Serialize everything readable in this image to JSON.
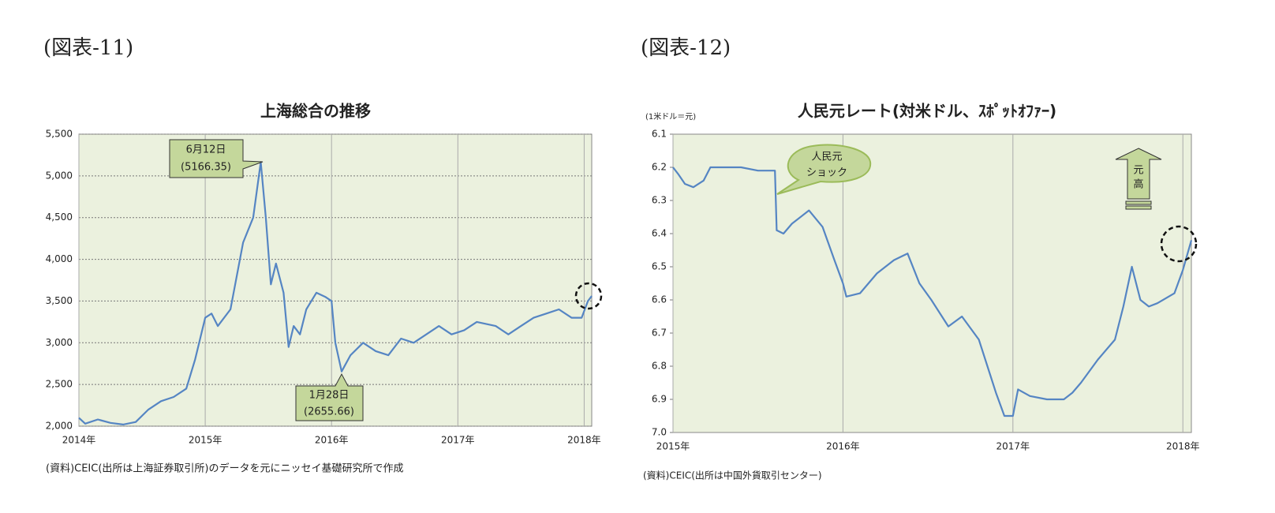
{
  "chart_data": [
    {
      "type": "line",
      "figure_label": "(図表-11)",
      "title": "上海総合の推移",
      "color": "#5585c3",
      "x": [
        2014.0,
        2014.05,
        2014.15,
        2014.25,
        2014.35,
        2014.45,
        2014.55,
        2014.65,
        2014.75,
        2014.85,
        2014.92,
        2015.0,
        2015.05,
        2015.1,
        2015.2,
        2015.25,
        2015.3,
        2015.38,
        2015.44,
        2015.48,
        2015.52,
        2015.56,
        2015.62,
        2015.66,
        2015.7,
        2015.75,
        2015.8,
        2015.88,
        2015.95,
        2016.0,
        2016.03,
        2016.08,
        2016.15,
        2016.25,
        2016.35,
        2016.45,
        2016.55,
        2016.65,
        2016.75,
        2016.85,
        2016.95,
        2017.05,
        2017.15,
        2017.3,
        2017.4,
        2017.5,
        2017.6,
        2017.7,
        2017.8,
        2017.9,
        2017.98,
        2018.03,
        2018.06
      ],
      "values": [
        2100,
        2030,
        2080,
        2040,
        2020,
        2050,
        2200,
        2300,
        2350,
        2450,
        2800,
        3300,
        3350,
        3200,
        3400,
        3800,
        4200,
        4500,
        5166.35,
        4500,
        3700,
        3950,
        3600,
        2950,
        3200,
        3100,
        3400,
        3600,
        3550,
        3500,
        3000,
        2655.66,
        2850,
        3000,
        2900,
        2850,
        3050,
        3000,
        3100,
        3200,
        3100,
        3150,
        3250,
        3200,
        3100,
        3200,
        3300,
        3350,
        3400,
        3300,
        3300,
        3500,
        3560
      ],
      "xlim": [
        2014,
        2018.06
      ],
      "xticks": [
        {
          "value": 2014,
          "label": "2014年"
        },
        {
          "value": 2015,
          "label": "2015年"
        },
        {
          "value": 2016,
          "label": "2016年"
        },
        {
          "value": 2017,
          "label": "2017年"
        },
        {
          "value": 2018,
          "label": "2018年"
        }
      ],
      "ylim": [
        2000,
        5500
      ],
      "yticks": [
        {
          "value": 2000,
          "label": "2,000"
        },
        {
          "value": 2500,
          "label": "2,500"
        },
        {
          "value": 3000,
          "label": "3,000"
        },
        {
          "value": 3500,
          "label": "3,500"
        },
        {
          "value": 4000,
          "label": "4,000"
        },
        {
          "value": 4500,
          "label": "4,500"
        },
        {
          "value": 5000,
          "label": "5,000"
        },
        {
          "value": 5500,
          "label": "5,500"
        }
      ],
      "grid": "both",
      "annotations": [
        "6月12日",
        "(5166.35)",
        "1月28日",
        "(2655.66)"
      ],
      "note": "(資料)CEIC(出所は上海証券取引所)のデータを元にニッセイ基礎研究所で作成"
    },
    {
      "type": "line",
      "figure_label": "(図表-12)",
      "title": "人民元レート(対米ドル、ｽﾎﾟｯﾄｵﾌｧｰ)",
      "y_label": "(1米ドル＝元)",
      "color": "#5585c3",
      "x": [
        2015.0,
        2015.03,
        2015.07,
        2015.12,
        2015.18,
        2015.22,
        2015.3,
        2015.4,
        2015.5,
        2015.6,
        2015.61,
        2015.65,
        2015.7,
        2015.8,
        2015.88,
        2015.95,
        2016.0,
        2016.02,
        2016.1,
        2016.2,
        2016.3,
        2016.38,
        2016.45,
        2016.52,
        2016.62,
        2016.7,
        2016.8,
        2016.85,
        2016.9,
        2016.95,
        2017.0,
        2017.03,
        2017.1,
        2017.2,
        2017.3,
        2017.35,
        2017.4,
        2017.5,
        2017.6,
        2017.65,
        2017.7,
        2017.75,
        2017.8,
        2017.85,
        2017.95,
        2018.0,
        2018.05
      ],
      "values": [
        6.2,
        6.22,
        6.25,
        6.26,
        6.24,
        6.2,
        6.2,
        6.2,
        6.21,
        6.21,
        6.39,
        6.4,
        6.37,
        6.33,
        6.38,
        6.48,
        6.55,
        6.59,
        6.58,
        6.52,
        6.48,
        6.46,
        6.55,
        6.6,
        6.68,
        6.65,
        6.72,
        6.8,
        6.88,
        6.95,
        6.95,
        6.87,
        6.89,
        6.9,
        6.9,
        6.88,
        6.85,
        6.78,
        6.72,
        6.62,
        6.5,
        6.6,
        6.62,
        6.61,
        6.58,
        6.51,
        6.42
      ],
      "xlim": [
        2015,
        2018.05
      ],
      "xticks": [
        {
          "value": 2015,
          "label": "2015年"
        },
        {
          "value": 2016,
          "label": "2016年"
        },
        {
          "value": 2017,
          "label": "2017年"
        },
        {
          "value": 2018,
          "label": "2018年"
        }
      ],
      "ylim": [
        7.0,
        6.1
      ],
      "yticks": [
        6.1,
        6.2,
        6.3,
        6.4,
        6.5,
        6.6,
        6.7,
        6.8,
        6.9,
        {
          "value": 7,
          "label": "7.0"
        }
      ],
      "grid": "x",
      "annotations": [
        "人民元",
        "ショック",
        "元",
        "高"
      ],
      "note": "(資料)CEIC(出所は中国外貨取引センター)"
    }
  ]
}
